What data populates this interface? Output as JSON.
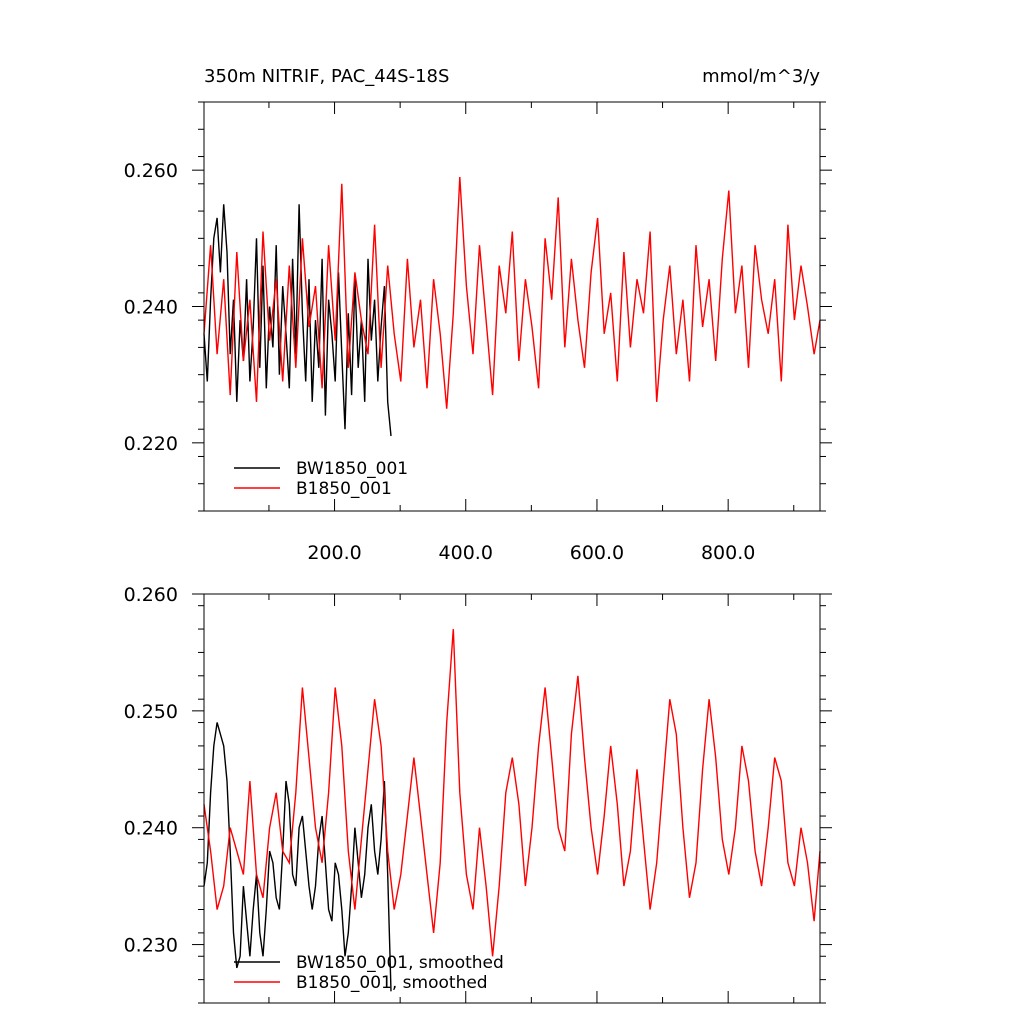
{
  "figure": {
    "title_left": "350m NITRIF, PAC_44S-18S",
    "title_right": "mmol/m^3/y"
  },
  "colors": {
    "series1": "#000000",
    "series2": "#ff0000"
  },
  "chart_data": [
    {
      "type": "line",
      "title": "350m NITRIF, PAC_44S-18S",
      "units": "mmol/m^3/y",
      "xlim": [
        1,
        940
      ],
      "ylim": [
        0.21,
        0.27
      ],
      "xticks": [
        200,
        400,
        600,
        800
      ],
      "xtick_labels": [
        "200.0",
        "400.0",
        "600.0",
        "800.0"
      ],
      "yticks": [
        0.22,
        0.24,
        0.26
      ],
      "ytick_labels": [
        "0.220",
        "0.240",
        "0.260"
      ],
      "legend_position": "bottom-left",
      "series": [
        {
          "name": "BW1850_001",
          "color": "#000000",
          "x": [
            1,
            6,
            11,
            16,
            21,
            26,
            31,
            36,
            41,
            46,
            51,
            56,
            61,
            66,
            71,
            76,
            81,
            86,
            91,
            96,
            101,
            106,
            111,
            116,
            121,
            126,
            131,
            136,
            141,
            146,
            151,
            156,
            161,
            166,
            171,
            176,
            181,
            186,
            191,
            196,
            201,
            206,
            211,
            216,
            221,
            226,
            231,
            236,
            241,
            246,
            251,
            256,
            261,
            266,
            271,
            276,
            281,
            286
          ],
          "y": [
            0.236,
            0.229,
            0.241,
            0.25,
            0.253,
            0.245,
            0.255,
            0.248,
            0.233,
            0.241,
            0.226,
            0.238,
            0.232,
            0.244,
            0.229,
            0.237,
            0.25,
            0.231,
            0.246,
            0.228,
            0.24,
            0.234,
            0.249,
            0.23,
            0.243,
            0.236,
            0.228,
            0.247,
            0.233,
            0.255,
            0.239,
            0.229,
            0.244,
            0.226,
            0.238,
            0.231,
            0.247,
            0.224,
            0.241,
            0.236,
            0.229,
            0.245,
            0.233,
            0.222,
            0.239,
            0.227,
            0.244,
            0.231,
            0.238,
            0.226,
            0.247,
            0.235,
            0.241,
            0.229,
            0.237,
            0.243,
            0.226,
            0.221
          ]
        },
        {
          "name": "B1850_001",
          "color": "#ff0000",
          "x": [
            1,
            11,
            21,
            31,
            41,
            51,
            61,
            71,
            81,
            91,
            101,
            111,
            121,
            131,
            141,
            151,
            161,
            171,
            181,
            191,
            201,
            211,
            221,
            231,
            241,
            251,
            261,
            271,
            281,
            291,
            301,
            311,
            321,
            331,
            341,
            351,
            361,
            371,
            381,
            391,
            401,
            411,
            421,
            431,
            441,
            451,
            461,
            471,
            481,
            491,
            501,
            511,
            521,
            531,
            541,
            551,
            561,
            571,
            581,
            591,
            601,
            611,
            621,
            631,
            641,
            651,
            661,
            671,
            681,
            691,
            701,
            711,
            721,
            731,
            741,
            751,
            761,
            771,
            781,
            791,
            801,
            811,
            821,
            831,
            841,
            851,
            861,
            871,
            881,
            891,
            901,
            911,
            921,
            931,
            940
          ],
          "y": [
            0.236,
            0.249,
            0.233,
            0.244,
            0.227,
            0.248,
            0.232,
            0.241,
            0.226,
            0.251,
            0.235,
            0.244,
            0.229,
            0.246,
            0.231,
            0.25,
            0.237,
            0.243,
            0.228,
            0.249,
            0.235,
            0.258,
            0.231,
            0.245,
            0.238,
            0.233,
            0.252,
            0.231,
            0.246,
            0.236,
            0.229,
            0.247,
            0.234,
            0.241,
            0.228,
            0.244,
            0.236,
            0.225,
            0.239,
            0.259,
            0.243,
            0.233,
            0.249,
            0.238,
            0.227,
            0.246,
            0.239,
            0.251,
            0.232,
            0.244,
            0.237,
            0.228,
            0.25,
            0.241,
            0.256,
            0.234,
            0.247,
            0.238,
            0.231,
            0.245,
            0.253,
            0.236,
            0.242,
            0.229,
            0.248,
            0.234,
            0.244,
            0.239,
            0.251,
            0.226,
            0.238,
            0.246,
            0.233,
            0.241,
            0.229,
            0.249,
            0.237,
            0.244,
            0.232,
            0.247,
            0.257,
            0.239,
            0.246,
            0.231,
            0.249,
            0.241,
            0.236,
            0.244,
            0.229,
            0.252,
            0.238,
            0.246,
            0.24,
            0.233,
            0.238
          ]
        }
      ]
    },
    {
      "type": "line",
      "title": "",
      "xlim": [
        1,
        940
      ],
      "ylim": [
        0.225,
        0.26
      ],
      "yticks": [
        0.23,
        0.24,
        0.25,
        0.26
      ],
      "ytick_labels": [
        "0.230",
        "0.240",
        "0.250",
        "0.260"
      ],
      "legend_position": "bottom-left",
      "series": [
        {
          "name": "BW1850_001, smoothed",
          "color": "#000000",
          "x": [
            1,
            6,
            11,
            16,
            21,
            26,
            31,
            36,
            41,
            46,
            51,
            56,
            61,
            66,
            71,
            76,
            81,
            86,
            91,
            96,
            101,
            106,
            111,
            116,
            121,
            126,
            131,
            136,
            141,
            146,
            151,
            156,
            161,
            166,
            171,
            176,
            181,
            186,
            191,
            196,
            201,
            206,
            211,
            216,
            221,
            226,
            231,
            236,
            241,
            246,
            251,
            256,
            261,
            266,
            271,
            276,
            281,
            286
          ],
          "y": [
            0.235,
            0.237,
            0.243,
            0.247,
            0.249,
            0.248,
            0.247,
            0.244,
            0.238,
            0.231,
            0.228,
            0.229,
            0.235,
            0.232,
            0.229,
            0.233,
            0.236,
            0.231,
            0.229,
            0.233,
            0.238,
            0.237,
            0.234,
            0.233,
            0.238,
            0.244,
            0.242,
            0.236,
            0.235,
            0.24,
            0.241,
            0.238,
            0.235,
            0.233,
            0.235,
            0.239,
            0.241,
            0.237,
            0.233,
            0.232,
            0.237,
            0.236,
            0.233,
            0.229,
            0.231,
            0.235,
            0.24,
            0.237,
            0.234,
            0.236,
            0.24,
            0.242,
            0.238,
            0.236,
            0.239,
            0.244,
            0.236,
            0.226
          ]
        },
        {
          "name": "B1850_001, smoothed",
          "color": "#ff0000",
          "x": [
            1,
            11,
            21,
            31,
            41,
            51,
            61,
            71,
            81,
            91,
            101,
            111,
            121,
            131,
            141,
            151,
            161,
            171,
            181,
            191,
            201,
            211,
            221,
            231,
            241,
            251,
            261,
            271,
            281,
            291,
            301,
            311,
            321,
            331,
            341,
            351,
            361,
            371,
            381,
            391,
            401,
            411,
            421,
            431,
            441,
            451,
            461,
            471,
            481,
            491,
            501,
            511,
            521,
            531,
            541,
            551,
            561,
            571,
            581,
            591,
            601,
            611,
            621,
            631,
            641,
            651,
            661,
            671,
            681,
            691,
            701,
            711,
            721,
            731,
            741,
            751,
            761,
            771,
            781,
            791,
            801,
            811,
            821,
            831,
            841,
            851,
            861,
            871,
            881,
            891,
            901,
            911,
            921,
            931,
            940
          ],
          "y": [
            0.242,
            0.238,
            0.233,
            0.235,
            0.24,
            0.238,
            0.236,
            0.244,
            0.236,
            0.234,
            0.24,
            0.243,
            0.238,
            0.237,
            0.243,
            0.252,
            0.246,
            0.24,
            0.237,
            0.243,
            0.252,
            0.247,
            0.238,
            0.233,
            0.239,
            0.245,
            0.251,
            0.247,
            0.238,
            0.233,
            0.236,
            0.241,
            0.246,
            0.241,
            0.236,
            0.231,
            0.237,
            0.249,
            0.257,
            0.243,
            0.236,
            0.233,
            0.24,
            0.235,
            0.229,
            0.235,
            0.243,
            0.246,
            0.242,
            0.235,
            0.24,
            0.247,
            0.252,
            0.246,
            0.24,
            0.238,
            0.248,
            0.253,
            0.246,
            0.24,
            0.236,
            0.241,
            0.247,
            0.242,
            0.235,
            0.238,
            0.245,
            0.239,
            0.233,
            0.237,
            0.244,
            0.251,
            0.248,
            0.24,
            0.234,
            0.237,
            0.245,
            0.251,
            0.246,
            0.239,
            0.236,
            0.24,
            0.247,
            0.244,
            0.238,
            0.235,
            0.24,
            0.246,
            0.244,
            0.237,
            0.235,
            0.24,
            0.237,
            0.232,
            0.238
          ]
        }
      ]
    }
  ]
}
